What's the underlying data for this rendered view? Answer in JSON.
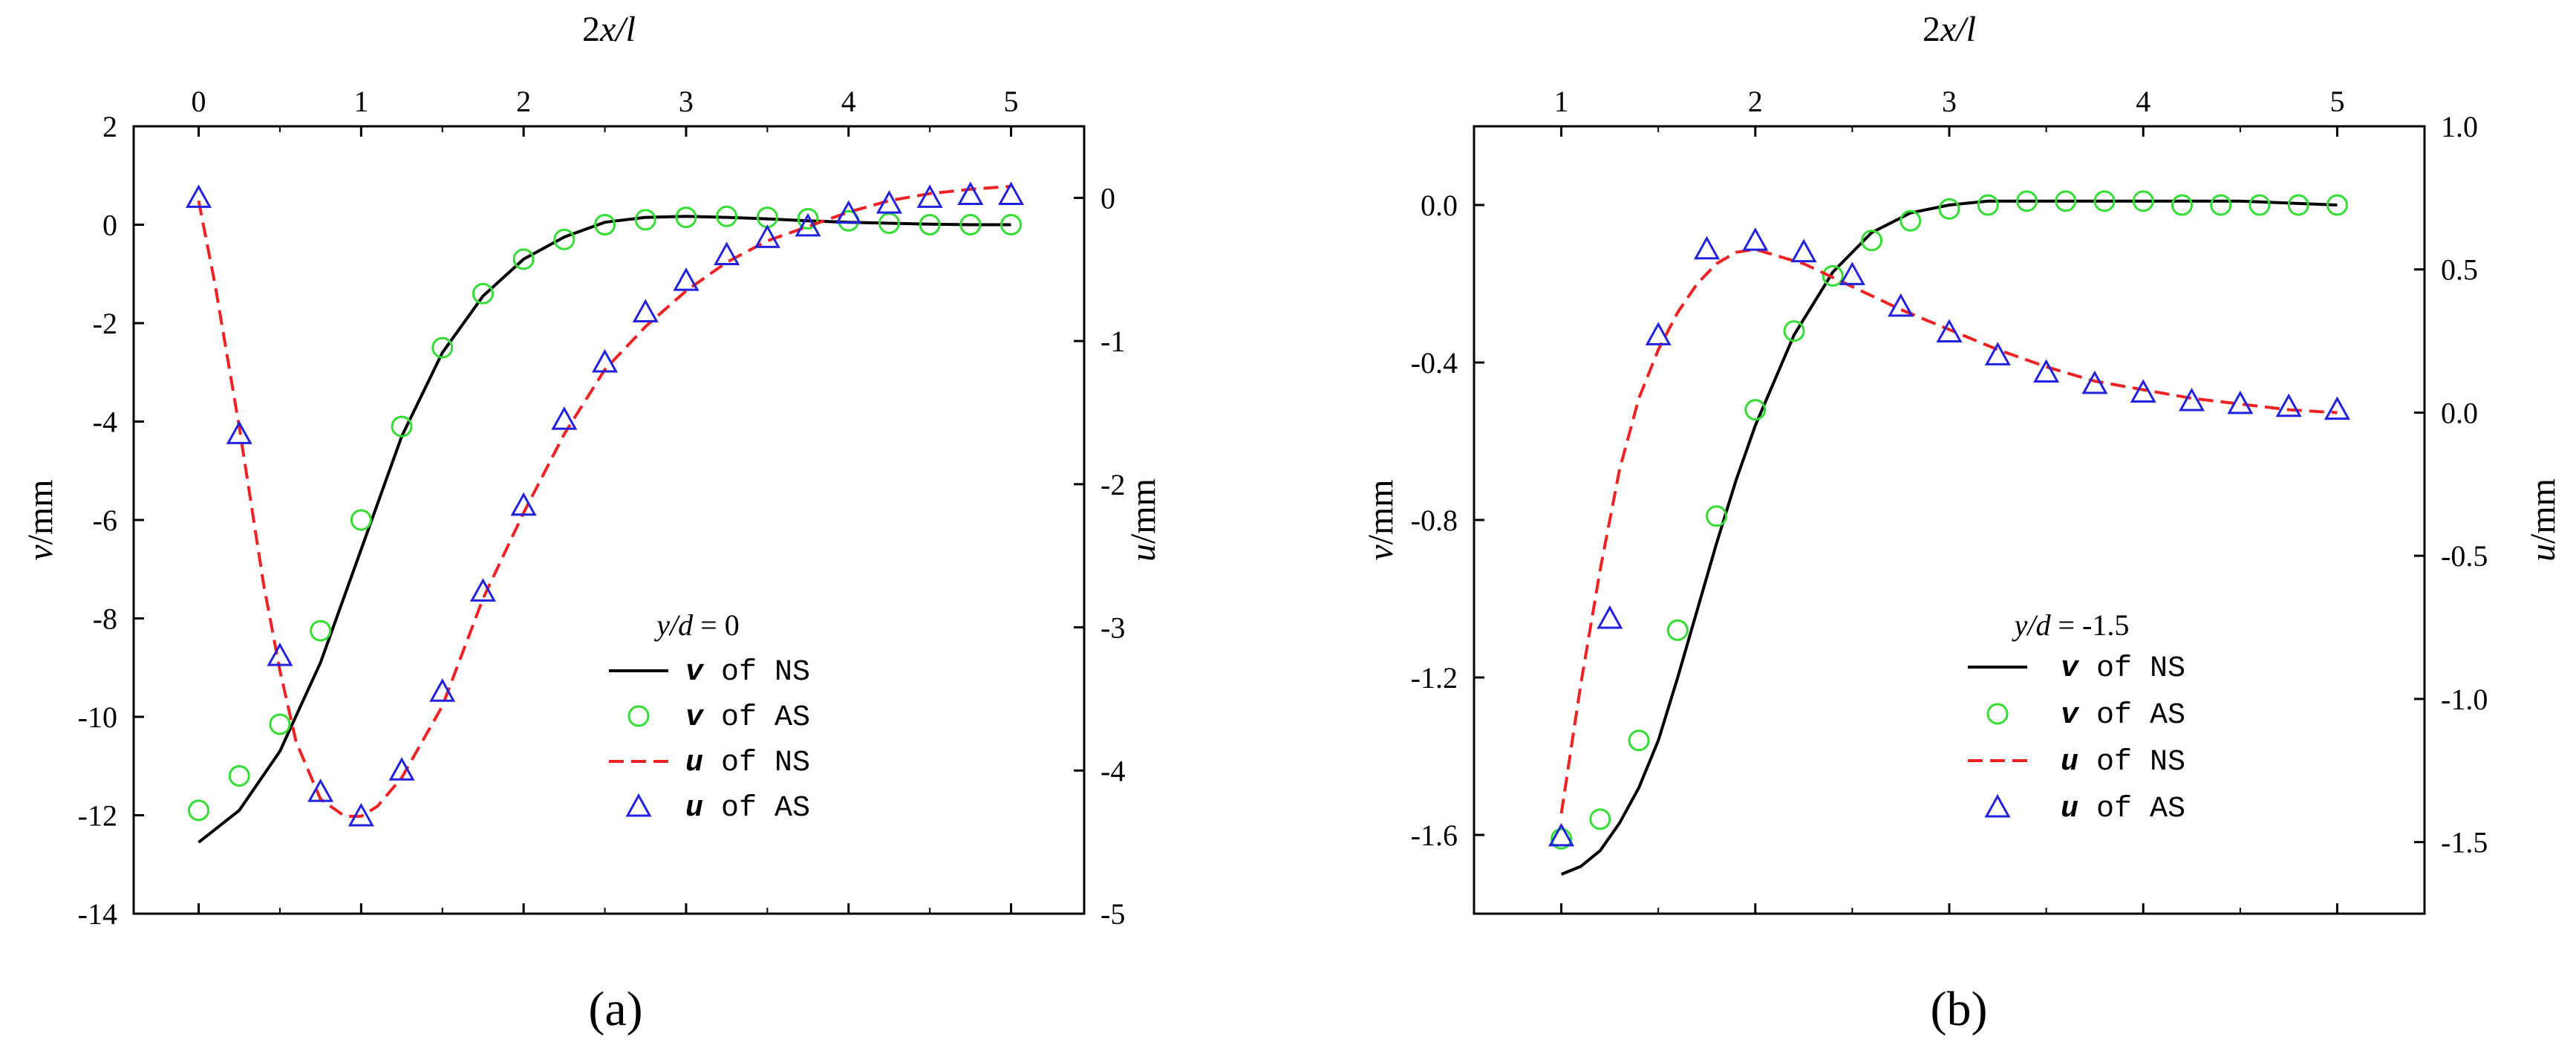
{
  "figure": {
    "panel_labels": [
      "(a)",
      "(b)"
    ]
  },
  "colors": {
    "ns_v": "#000000",
    "as_v": "#33dd33",
    "ns_u": "#ee2222",
    "as_u": "#2222dd"
  },
  "chart_data": [
    {
      "id": "a",
      "type": "line",
      "panel_label": "(a)",
      "xlabel": "2x/l",
      "ylabel_left": "v/mm",
      "ylabel_right": "u/mm",
      "xlim": [
        -0.4,
        5.45
      ],
      "ylim_left": [
        -14,
        2
      ],
      "ylim_right": [
        -5,
        0.5
      ],
      "xticks": [
        0,
        1,
        2,
        3,
        4,
        5
      ],
      "yticks_left": [
        2,
        0,
        -2,
        -4,
        -6,
        -8,
        -10,
        -12,
        -14
      ],
      "yticks_right": [
        0,
        -1,
        -2,
        -3,
        -4,
        -5
      ],
      "legend_title": "y/d = 0",
      "legend": [
        "v of NS",
        "v of AS",
        "u of NS",
        "u of AS"
      ],
      "series": [
        {
          "name": "v of NS",
          "axis": "left",
          "style": "solid",
          "x": [
            0,
            0.25,
            0.5,
            0.75,
            1.0,
            1.25,
            1.5,
            1.75,
            2.0,
            2.25,
            2.5,
            2.75,
            3.0,
            3.25,
            3.5,
            3.75,
            4.0,
            4.25,
            4.5,
            4.75,
            5.0
          ],
          "y": [
            -12.55,
            -11.9,
            -10.7,
            -8.9,
            -6.6,
            -4.3,
            -2.6,
            -1.45,
            -0.7,
            -0.25,
            0.05,
            0.15,
            0.17,
            0.15,
            0.12,
            0.08,
            0.05,
            0.03,
            0.01,
            0.0,
            0.0
          ]
        },
        {
          "name": "v of AS",
          "axis": "left",
          "style": "circle",
          "x": [
            0,
            0.25,
            0.5,
            0.75,
            1.0,
            1.25,
            1.5,
            1.75,
            2.0,
            2.25,
            2.5,
            2.75,
            3.0,
            3.25,
            3.5,
            3.75,
            4.0,
            4.25,
            4.5,
            4.75,
            5.0
          ],
          "y": [
            -11.9,
            -11.2,
            -10.15,
            -8.25,
            -6.0,
            -4.1,
            -2.5,
            -1.4,
            -0.7,
            -0.3,
            0.0,
            0.1,
            0.15,
            0.17,
            0.15,
            0.12,
            0.08,
            0.03,
            0.0,
            0.0,
            0.0
          ]
        },
        {
          "name": "u of NS",
          "axis": "right",
          "style": "dashed",
          "x": [
            0,
            0.1,
            0.25,
            0.4,
            0.5,
            0.6,
            0.75,
            0.9,
            1.0,
            1.1,
            1.25,
            1.5,
            1.75,
            2.0,
            2.25,
            2.5,
            2.75,
            3.0,
            3.25,
            3.5,
            3.75,
            4.0,
            4.25,
            4.5,
            4.75,
            5.0
          ],
          "y": [
            -0.02,
            -0.6,
            -1.6,
            -2.7,
            -3.3,
            -3.8,
            -4.2,
            -4.32,
            -4.32,
            -4.25,
            -4.05,
            -3.55,
            -2.8,
            -2.2,
            -1.65,
            -1.2,
            -0.9,
            -0.65,
            -0.45,
            -0.3,
            -0.2,
            -0.1,
            -0.02,
            0.03,
            0.06,
            0.08
          ]
        },
        {
          "name": "u of AS",
          "axis": "right",
          "style": "triangle",
          "x": [
            0,
            0.25,
            0.5,
            0.75,
            1.0,
            1.25,
            1.5,
            1.75,
            2.0,
            2.25,
            2.5,
            2.75,
            3.0,
            3.25,
            3.5,
            3.75,
            4.0,
            4.25,
            4.5,
            4.75,
            5.0
          ],
          "y": [
            0.0,
            -1.65,
            -3.2,
            -4.15,
            -4.32,
            -4.0,
            -3.45,
            -2.75,
            -2.15,
            -1.55,
            -1.15,
            -0.8,
            -0.58,
            -0.4,
            -0.28,
            -0.2,
            -0.11,
            -0.04,
            0.0,
            0.02,
            0.02
          ]
        }
      ]
    },
    {
      "id": "b",
      "type": "line",
      "panel_label": "(b)",
      "xlabel": "2x/l",
      "ylabel_left": "v/mm",
      "ylabel_right": "u/mm",
      "xlim": [
        0.55,
        5.45
      ],
      "ylim_left": [
        -1.8,
        0.2
      ],
      "ylim_right": [
        -1.75,
        1.0
      ],
      "xticks": [
        1,
        2,
        3,
        4,
        5
      ],
      "yticks_left": [
        0.0,
        -0.4,
        -0.8,
        -1.2,
        -1.6
      ],
      "yticks_right": [
        1.0,
        0.5,
        0.0,
        -0.5,
        -1.0,
        -1.5
      ],
      "legend_title": "y/d = -1.5",
      "legend": [
        "v of NS",
        "v of AS",
        "u of NS",
        "u of AS"
      ],
      "series": [
        {
          "name": "v of NS",
          "axis": "left",
          "style": "solid",
          "x": [
            1.0,
            1.1,
            1.2,
            1.3,
            1.4,
            1.5,
            1.6,
            1.7,
            1.8,
            1.9,
            2.0,
            2.2,
            2.4,
            2.6,
            2.8,
            3.0,
            3.2,
            3.5,
            4.0,
            4.5,
            5.0
          ],
          "y": [
            -1.7,
            -1.68,
            -1.64,
            -1.57,
            -1.48,
            -1.36,
            -1.2,
            -1.03,
            -0.86,
            -0.7,
            -0.56,
            -0.33,
            -0.17,
            -0.07,
            -0.02,
            0.0,
            0.01,
            0.01,
            0.01,
            0.01,
            0.0
          ]
        },
        {
          "name": "v of AS",
          "axis": "left",
          "style": "circle",
          "x": [
            1.0,
            1.2,
            1.4,
            1.6,
            1.8,
            2.0,
            2.2,
            2.4,
            2.6,
            2.8,
            3.0,
            3.2,
            3.4,
            3.6,
            3.8,
            4.0,
            4.2,
            4.4,
            4.6,
            4.8,
            5.0
          ],
          "y": [
            -1.61,
            -1.56,
            -1.36,
            -1.08,
            -0.79,
            -0.52,
            -0.32,
            -0.18,
            -0.09,
            -0.04,
            -0.01,
            0.0,
            0.01,
            0.01,
            0.01,
            0.01,
            0.0,
            0.0,
            0.0,
            0.0,
            0.0
          ]
        },
        {
          "name": "u of NS",
          "axis": "right",
          "style": "dashed",
          "x": [
            1.0,
            1.1,
            1.2,
            1.3,
            1.4,
            1.5,
            1.6,
            1.7,
            1.8,
            1.9,
            2.0,
            2.25,
            2.5,
            2.75,
            3.0,
            3.25,
            3.5,
            3.75,
            4.0,
            4.25,
            4.5,
            4.75,
            5.0
          ],
          "y": [
            -1.4,
            -0.95,
            -0.55,
            -0.2,
            0.05,
            0.22,
            0.35,
            0.45,
            0.52,
            0.56,
            0.57,
            0.52,
            0.44,
            0.36,
            0.29,
            0.22,
            0.16,
            0.11,
            0.08,
            0.05,
            0.03,
            0.01,
            0.0
          ]
        },
        {
          "name": "u of AS",
          "axis": "right",
          "style": "triangle",
          "x": [
            1.0,
            1.25,
            1.5,
            1.75,
            2.0,
            2.25,
            2.5,
            2.75,
            3.0,
            3.25,
            3.5,
            3.75,
            4.0,
            4.25,
            4.5,
            4.75,
            5.0
          ],
          "y": [
            -1.48,
            -0.72,
            0.27,
            0.57,
            0.6,
            0.56,
            0.48,
            0.37,
            0.28,
            0.2,
            0.14,
            0.1,
            0.07,
            0.04,
            0.03,
            0.02,
            0.01
          ]
        }
      ]
    }
  ]
}
